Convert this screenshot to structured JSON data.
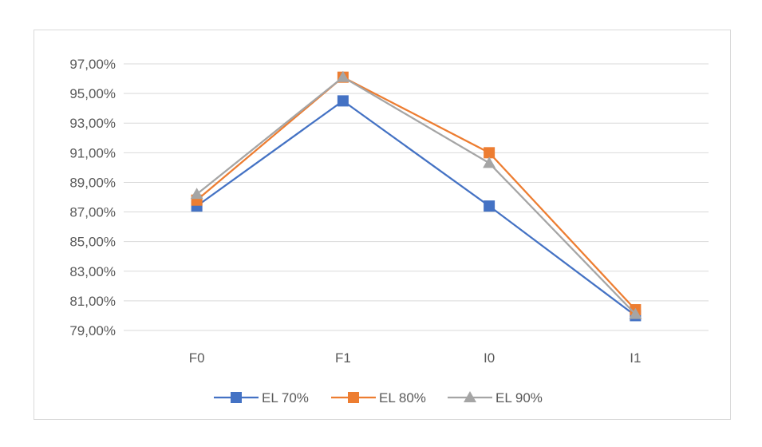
{
  "chart_data": {
    "type": "line",
    "title": "",
    "xlabel": "",
    "ylabel": "",
    "categories": [
      "F0",
      "F1",
      "I0",
      "I1"
    ],
    "ylim": [
      79,
      97
    ],
    "yticks": [
      79,
      81,
      83,
      85,
      87,
      89,
      91,
      93,
      95,
      97
    ],
    "ytick_labels": [
      "79,00%",
      "81,00%",
      "83,00%",
      "85,00%",
      "87,00%",
      "89,00%",
      "91,00%",
      "93,00%",
      "95,00%",
      "97,00%"
    ],
    "grid": "horizontal",
    "legend_position": "bottom",
    "series": [
      {
        "name": "EL 70%",
        "values": [
          87.4,
          94.5,
          87.4,
          80.0
        ],
        "color": "#4472c4",
        "marker": "square"
      },
      {
        "name": "EL 80%",
        "values": [
          87.8,
          96.1,
          91.0,
          80.4
        ],
        "color": "#ed7d31",
        "marker": "square"
      },
      {
        "name": "EL 90%",
        "values": [
          88.2,
          96.1,
          90.3,
          80.1
        ],
        "color": "#a5a5a5",
        "marker": "triangle"
      }
    ]
  }
}
